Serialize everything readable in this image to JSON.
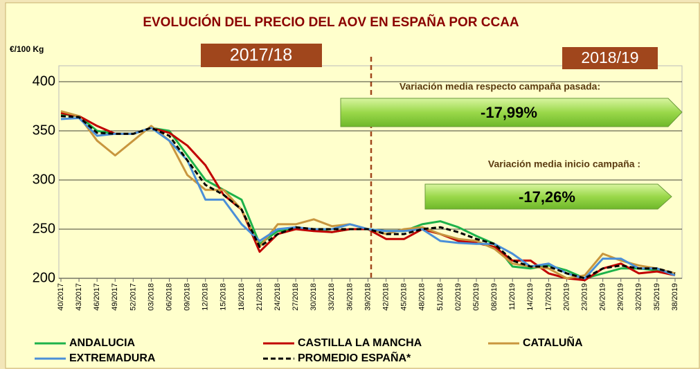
{
  "chart_data": {
    "type": "line",
    "title": "EVOLUCIÓN DEL PRECIO DEL AOV EN ESPAÑA POR CCAA",
    "y_label": "€/100 Kg",
    "periods": [
      "2017/18",
      "2018/19"
    ],
    "annotations": [
      "Variación media respecto campaña pasada:",
      "-17,99%",
      "Variación media inicio campaña :",
      "-17,26%"
    ],
    "categories": [
      "40/2017",
      "43/2017",
      "46/2017",
      "49/2017",
      "52/2017",
      "03/2018",
      "06/2018",
      "09/2018",
      "12/2018",
      "15/2018",
      "18/2018",
      "21/2018",
      "24/2018",
      "27/2018",
      "30/2018",
      "33/2018",
      "36/2018",
      "39/2018",
      "42/2018",
      "45/2018",
      "48/2018",
      "51/2018",
      "02/2019",
      "05/2019",
      "08/2019",
      "11/2019",
      "14/2019",
      "17/2019",
      "20/2019",
      "23/2019",
      "26/2019",
      "29/2019",
      "32/2019",
      "35/2019",
      "38/2019"
    ],
    "series": [
      {
        "name": "ANDALUCIA",
        "color": "#1db24a",
        "dashed": false,
        "values": [
          367,
          365,
          350,
          347,
          347,
          353,
          350,
          325,
          300,
          290,
          280,
          235,
          248,
          250,
          250,
          247,
          250,
          250,
          248,
          248,
          255,
          258,
          252,
          243,
          235,
          212,
          210,
          213,
          208,
          200,
          205,
          210,
          210,
          208,
          205
        ]
      },
      {
        "name": "CASTILLA LA MANCHA",
        "color": "#c00000",
        "dashed": false,
        "values": [
          368,
          365,
          355,
          347,
          347,
          353,
          348,
          335,
          315,
          285,
          270,
          227,
          245,
          250,
          248,
          247,
          250,
          250,
          240,
          240,
          250,
          245,
          238,
          236,
          232,
          218,
          218,
          205,
          200,
          198,
          210,
          215,
          205,
          207,
          203
        ]
      },
      {
        "name": "CATALUÑA",
        "color": "#c8963e",
        "dashed": false,
        "values": [
          370,
          365,
          340,
          325,
          340,
          355,
          340,
          305,
          290,
          290,
          270,
          232,
          255,
          255,
          260,
          253,
          255,
          250,
          245,
          250,
          252,
          245,
          240,
          238,
          230,
          215,
          212,
          210,
          200,
          203,
          225,
          218,
          213,
          210,
          205
        ]
      },
      {
        "name": "EXTREMADURA",
        "color": "#4a8fd8",
        "dashed": false,
        "values": [
          362,
          363,
          345,
          347,
          347,
          353,
          340,
          320,
          280,
          280,
          255,
          238,
          250,
          252,
          250,
          250,
          255,
          250,
          248,
          248,
          250,
          238,
          236,
          235,
          235,
          225,
          212,
          215,
          205,
          200,
          220,
          220,
          210,
          210,
          203
        ]
      },
      {
        "name": "PROMEDIO ESPAÑA*",
        "color": "#000000",
        "dashed": true,
        "values": [
          365,
          364,
          348,
          347,
          347,
          353,
          345,
          320,
          295,
          285,
          270,
          232,
          245,
          252,
          250,
          250,
          250,
          250,
          245,
          245,
          250,
          252,
          247,
          240,
          235,
          218,
          212,
          212,
          205,
          200,
          210,
          213,
          210,
          210,
          205
        ]
      }
    ],
    "ylim": [
      200,
      400
    ],
    "yticks": [
      200,
      250,
      300,
      350,
      400
    ],
    "grid": true
  }
}
